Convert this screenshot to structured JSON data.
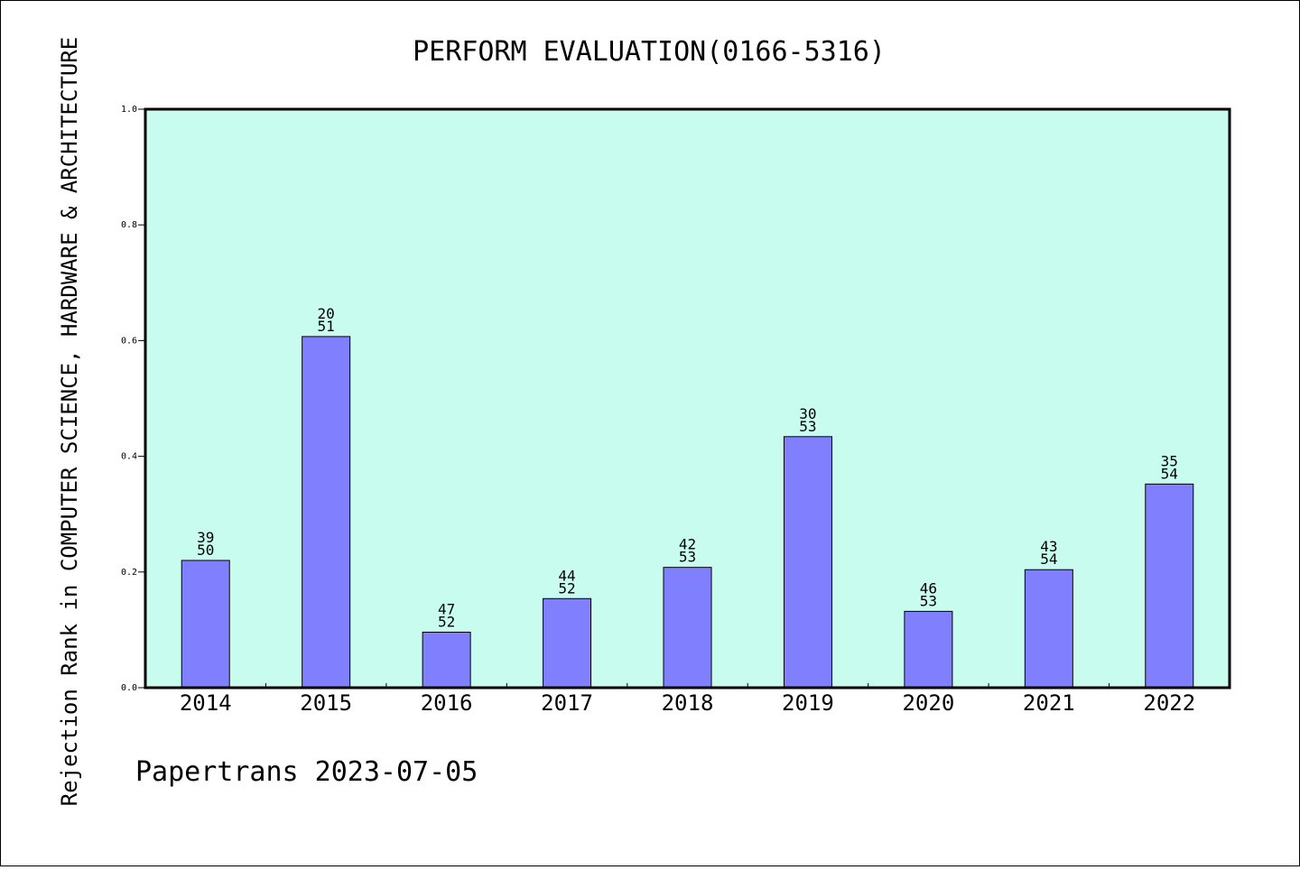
{
  "chart_data": {
    "type": "bar",
    "title": "PERFORM EVALUATION(0166-5316)",
    "ylabel": "Rejection Rank in COMPUTER SCIENCE, HARDWARE & ARCHITECTURE",
    "xlabel": "",
    "categories": [
      "2014",
      "2015",
      "2016",
      "2017",
      "2018",
      "2019",
      "2020",
      "2021",
      "2022"
    ],
    "values": [
      0.22,
      0.607,
      0.096,
      0.154,
      0.208,
      0.434,
      0.132,
      0.204,
      0.352
    ],
    "bar_labels": [
      [
        "39",
        "50"
      ],
      [
        "20",
        "51"
      ],
      [
        "47",
        "52"
      ],
      [
        "44",
        "52"
      ],
      [
        "42",
        "53"
      ],
      [
        "30",
        "53"
      ],
      [
        "46",
        "53"
      ],
      [
        "43",
        "54"
      ],
      [
        "35",
        "54"
      ]
    ],
    "ylim": [
      0.0,
      1.0
    ],
    "yticks": [
      "0.0",
      "0.2",
      "0.4",
      "0.6",
      "0.8",
      "1.0"
    ],
    "grid": false,
    "legend": "none",
    "colors": {
      "bar": "#8080ff",
      "plot_background": "#c8fcee",
      "axis": "#000000"
    }
  },
  "footer": {
    "text": "Papertrans 2023-07-05"
  }
}
